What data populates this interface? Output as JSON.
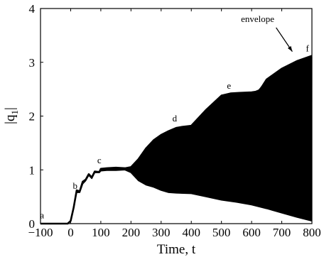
{
  "chart_data": {
    "type": "line",
    "title": "",
    "xlabel": "Time, t",
    "ylabel_main": "|q",
    "ylabel_sub": "1",
    "ylabel_close": "|",
    "xlim": [
      -100,
      800
    ],
    "ylim": [
      0,
      4
    ],
    "xticks": [
      -100,
      0,
      100,
      200,
      300,
      400,
      500,
      600,
      700,
      800
    ],
    "yticks": [
      0,
      1,
      2,
      3,
      4
    ],
    "grid": false,
    "series": [
      {
        "role": "oscillation_upper",
        "x": [
          -100,
          -10,
          0,
          10,
          20,
          30,
          40,
          50,
          60,
          70,
          80,
          95,
          100,
          120,
          150,
          180,
          200,
          225,
          250,
          275,
          300,
          325,
          350,
          370,
          400,
          450,
          500,
          530,
          560,
          600,
          625,
          650,
          700,
          750,
          800
        ],
        "y": [
          0,
          0,
          0.05,
          0.3,
          0.62,
          0.6,
          0.78,
          0.82,
          0.92,
          0.86,
          0.97,
          0.96,
          1.02,
          1.03,
          1.04,
          1.03,
          1.05,
          1.2,
          1.4,
          1.55,
          1.65,
          1.72,
          1.78,
          1.8,
          1.82,
          2.12,
          2.38,
          2.4,
          2.41,
          2.42,
          2.48,
          2.65,
          2.85,
          3.0,
          3.1
        ]
      },
      {
        "role": "oscillation_lower",
        "x": [
          -100,
          -10,
          0,
          10,
          20,
          30,
          40,
          50,
          60,
          70,
          80,
          95,
          100,
          120,
          150,
          180,
          200,
          225,
          250,
          275,
          300,
          325,
          350,
          400,
          450,
          500,
          550,
          600,
          650,
          700,
          750,
          800
        ],
        "y": [
          0,
          0,
          0.05,
          0.3,
          0.58,
          0.58,
          0.74,
          0.8,
          0.9,
          0.84,
          0.95,
          0.95,
          0.98,
          0.99,
          0.99,
          1.0,
          0.95,
          0.8,
          0.72,
          0.68,
          0.62,
          0.58,
          0.57,
          0.56,
          0.5,
          0.44,
          0.4,
          0.35,
          0.28,
          0.2,
          0.12,
          0.05
        ]
      },
      {
        "name": "envelope",
        "x": [
          500,
          530,
          560,
          600,
          625,
          650,
          700,
          750,
          800
        ],
        "y": [
          2.38,
          2.42,
          2.43,
          2.44,
          2.46,
          2.68,
          2.88,
          3.02,
          3.12
        ]
      }
    ],
    "annotations": [
      {
        "text": "a",
        "x": -95,
        "y": 0.1
      },
      {
        "text": "b",
        "x": 15,
        "y": 0.65
      },
      {
        "text": "c",
        "x": 95,
        "y": 1.12
      },
      {
        "text": "d",
        "x": 345,
        "y": 1.9
      },
      {
        "text": "e",
        "x": 525,
        "y": 2.51
      },
      {
        "text": "f",
        "x": 785,
        "y": 3.2
      },
      {
        "text": "envelope",
        "x": 620,
        "y": 3.75
      }
    ]
  }
}
